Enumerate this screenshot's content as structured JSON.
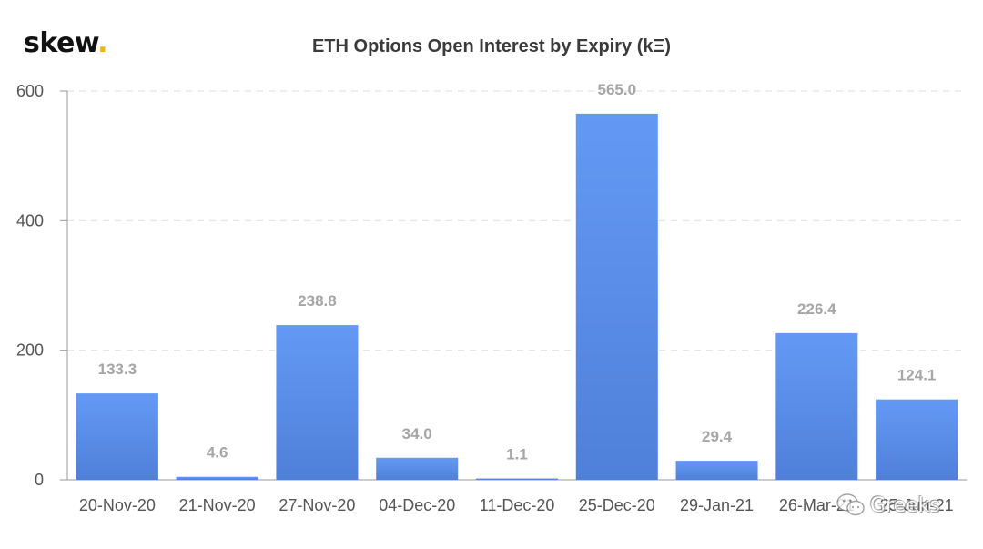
{
  "logo": {
    "text": "skew",
    "dot": "."
  },
  "watermark": {
    "text": "Greeks",
    "icon": "wechat-icon"
  },
  "colors": {
    "bar_top": "#6399f5",
    "bar_bottom": "#4f80d9",
    "grid": "#e3e3e3",
    "axis": "#999999",
    "label": "#a6a6a6",
    "logo_dot": "#f2b316"
  },
  "chart_data": {
    "type": "bar",
    "title": "ETH Options Open Interest by Expiry (kΞ)",
    "xlabel": "",
    "ylabel": "",
    "categories": [
      "20-Nov-20",
      "21-Nov-20",
      "27-Nov-20",
      "04-Dec-20",
      "11-Dec-20",
      "25-Dec-20",
      "29-Jan-21",
      "26-Mar-21",
      "25-Jun-21"
    ],
    "values": [
      133.3,
      4.6,
      238.8,
      34.0,
      1.1,
      565.0,
      29.4,
      226.4,
      124.1
    ],
    "value_labels": [
      "133.3",
      "4.6",
      "238.8",
      "34.0",
      "1.1",
      "565.0",
      "29.4",
      "226.4",
      "124.1"
    ],
    "ylim": [
      0,
      600
    ],
    "yticks": [
      0,
      200,
      400,
      600
    ],
    "grid": true,
    "legend": "none"
  }
}
